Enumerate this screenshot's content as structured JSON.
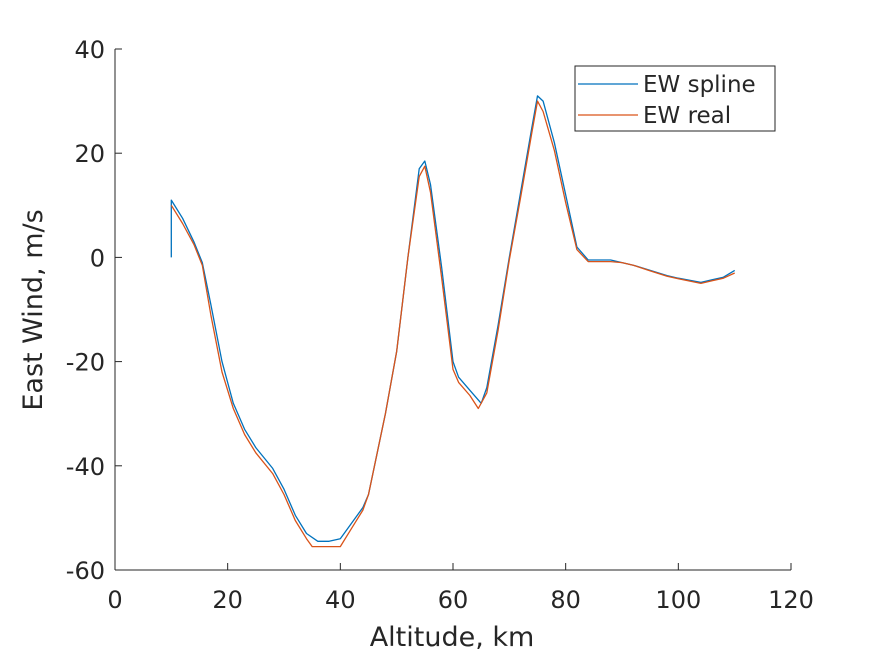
{
  "chart_data": {
    "type": "line",
    "xlabel": "Altitude, km",
    "ylabel": "East Wind, m/s",
    "xlim": [
      0,
      120
    ],
    "ylim": [
      -60,
      40
    ],
    "xticks": [
      0,
      20,
      40,
      60,
      80,
      100,
      120
    ],
    "yticks": [
      -60,
      -40,
      -20,
      0,
      20,
      40
    ],
    "grid": false,
    "legend_position": "top-right",
    "series": [
      {
        "name": "EW spline",
        "color": "#0072BD",
        "x": [
          10,
          10,
          12,
          14,
          15.5,
          17,
          19,
          21,
          23,
          25,
          28,
          30,
          32,
          34,
          36,
          38,
          40,
          42,
          44,
          45,
          48,
          50,
          52,
          54,
          55,
          56,
          58,
          60,
          61,
          63,
          65,
          66,
          68,
          70,
          72,
          74,
          75,
          76,
          78,
          80,
          82,
          84,
          85,
          88,
          90,
          92,
          95,
          98,
          100,
          104,
          106,
          108,
          110
        ],
        "y": [
          0,
          11,
          7.5,
          3,
          -1,
          -9,
          -20,
          -28,
          -33,
          -36.5,
          -40.5,
          -44.5,
          -49.5,
          -53,
          -54.5,
          -54.5,
          -54,
          -51,
          -48,
          -45.5,
          -30,
          -18,
          0,
          17,
          18.5,
          14,
          -2,
          -20,
          -23,
          -25.5,
          -28,
          -25,
          -13,
          0,
          12.5,
          25,
          31,
          30,
          22,
          12,
          2,
          -0.5,
          -0.5,
          -0.5,
          -1,
          -1.5,
          -2.5,
          -3.5,
          -4,
          -4.8,
          -4.3,
          -3.8,
          -2.5
        ]
      },
      {
        "name": "EW real",
        "color": "#D95319",
        "x": [
          10,
          12,
          14,
          15.5,
          17,
          19,
          21,
          23,
          25,
          28,
          30,
          32,
          34,
          35,
          36,
          38,
          40,
          42,
          44,
          45,
          48,
          50,
          52,
          54,
          55,
          56,
          58,
          60,
          61,
          63,
          64.5,
          66,
          68,
          70,
          72,
          74,
          75,
          76,
          78,
          80,
          82,
          84,
          85,
          88,
          90,
          92,
          95,
          98,
          100,
          104,
          106,
          108,
          110
        ],
        "y": [
          10,
          6.5,
          2.5,
          -1.5,
          -11,
          -22,
          -29,
          -34,
          -37.5,
          -41.5,
          -45.5,
          -50.5,
          -54,
          -55.5,
          -55.5,
          -55.5,
          -55.5,
          -52,
          -48.5,
          -45.5,
          -30,
          -18,
          0,
          15.5,
          17.5,
          12.5,
          -4,
          -21.5,
          -24,
          -26.5,
          -29,
          -26,
          -14,
          -0.5,
          11.5,
          24,
          30,
          28,
          20.5,
          10.5,
          1.5,
          -0.8,
          -0.8,
          -0.8,
          -1,
          -1.5,
          -2.6,
          -3.6,
          -4.1,
          -5,
          -4.5,
          -4,
          -3
        ]
      }
    ]
  }
}
